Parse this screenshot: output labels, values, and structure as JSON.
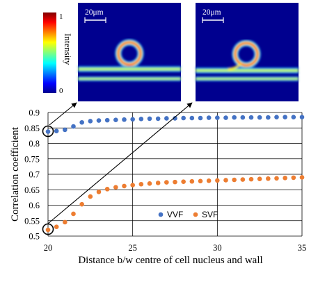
{
  "chart_data": {
    "type": "scatter",
    "xlabel": "Distance b/w centre of cell nucleus and wall",
    "ylabel": "Correlation coefficient",
    "xlim": [
      20,
      35
    ],
    "ylim": [
      0.5,
      0.9
    ],
    "xticks": [
      "20",
      "25",
      "30",
      "35"
    ],
    "yticks": [
      "0.5",
      "0.55",
      "0.6",
      "0.65",
      "0.7",
      "0.75",
      "0.8",
      "0.85",
      "0.9"
    ],
    "grid": true,
    "legend_placement": "bottom-center",
    "series": [
      {
        "name": "VVF",
        "color": "#4472C4",
        "x": [
          20,
          20.5,
          21,
          21.5,
          22,
          22.5,
          23,
          23.5,
          24,
          24.5,
          25,
          25.5,
          26,
          26.5,
          27,
          27.5,
          28,
          28.5,
          29,
          29.5,
          30,
          30.5,
          31,
          31.5,
          32,
          32.5,
          33,
          33.5,
          34,
          34.5,
          35
        ],
        "y": [
          0.838,
          0.84,
          0.844,
          0.855,
          0.868,
          0.872,
          0.874,
          0.875,
          0.876,
          0.877,
          0.878,
          0.879,
          0.88,
          0.88,
          0.881,
          0.881,
          0.882,
          0.882,
          0.882,
          0.883,
          0.883,
          0.883,
          0.884,
          0.884,
          0.884,
          0.884,
          0.884,
          0.885,
          0.885,
          0.885,
          0.885
        ]
      },
      {
        "name": "SVF",
        "color": "#ED7D31",
        "x": [
          20,
          20.5,
          21,
          21.5,
          22,
          22.5,
          23,
          23.5,
          24,
          24.5,
          25,
          25.5,
          26,
          26.5,
          27,
          27.5,
          28,
          28.5,
          29,
          29.5,
          30,
          30.5,
          31,
          31.5,
          32,
          32.5,
          33,
          33.5,
          34,
          34.5,
          35
        ],
        "y": [
          0.52,
          0.53,
          0.545,
          0.572,
          0.603,
          0.628,
          0.643,
          0.652,
          0.658,
          0.662,
          0.665,
          0.668,
          0.67,
          0.672,
          0.674,
          0.675,
          0.676,
          0.677,
          0.678,
          0.679,
          0.68,
          0.681,
          0.682,
          0.683,
          0.684,
          0.685,
          0.686,
          0.687,
          0.688,
          0.689,
          0.69
        ]
      }
    ],
    "annotations": {
      "inset_scale_bar": "20μm",
      "colorbar_title": "Intensity",
      "colorbar_max": "1",
      "colorbar_min": "0"
    }
  }
}
